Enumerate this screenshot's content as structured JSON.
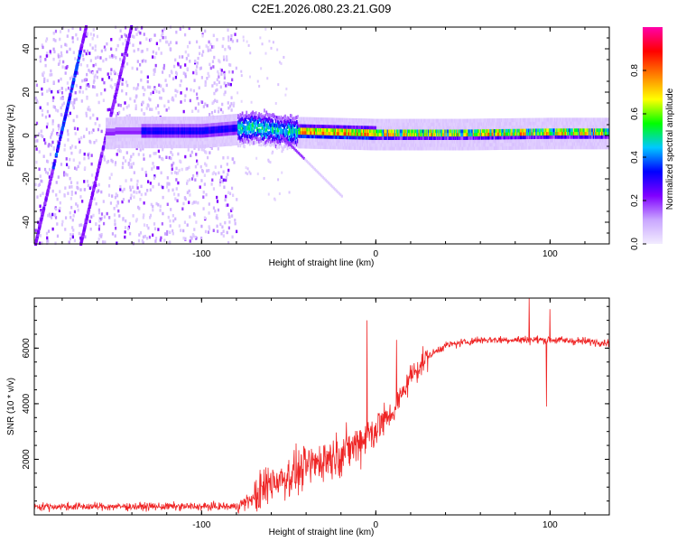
{
  "title": "C2E1.2026.080.23.21.G09",
  "chart_data": [
    {
      "type": "heatmap",
      "title": "C2E1.2026.080.23.21.G09",
      "xlabel": "Height of straight line (km)",
      "ylabel": "Frequency (Hz)",
      "xlim": [
        -196,
        134
      ],
      "ylim": [
        -50,
        50
      ],
      "xticks": [
        -100,
        0,
        100
      ],
      "xtick_labels": [
        "-100",
        "0",
        "100"
      ],
      "yticks": [
        -40,
        -20,
        0,
        20,
        40
      ],
      "ytick_labels": [
        "-40",
        "-20",
        "0",
        "20",
        "40"
      ],
      "grid": false,
      "colorbar": {
        "label": "Normalized spectral amplitude",
        "range": [
          0,
          1
        ],
        "ticks": [
          0,
          0.2,
          0.4,
          0.6,
          0.8
        ],
        "tick_labels": [
          "0.0",
          "0.2",
          "0.4",
          "0.6",
          "0.8"
        ],
        "colormap": [
          "#f2ecff",
          "#c9a6ff",
          "#8000ff",
          "#0000ff",
          "#00c8ff",
          "#00ff00",
          "#ffff00",
          "#ff8000",
          "#ff0000",
          "#ff00aa"
        ]
      },
      "features": {
        "main_tone_freq_hz": [
          {
            "x": -150,
            "y": 2
          },
          {
            "x": -100,
            "y": 2
          },
          {
            "x": -70,
            "y": 4
          },
          {
            "x": -50,
            "y": 2
          },
          {
            "x": 0,
            "y": 1
          },
          {
            "x": 50,
            "y": 1
          },
          {
            "x": 100,
            "y": 1.5
          },
          {
            "x": 134,
            "y": 1.5
          }
        ],
        "steep_lines": [
          {
            "x_start": -196,
            "y_start": -50,
            "x_end": -167,
            "y_end": 50
          },
          {
            "x_start": -170,
            "y_start": -50,
            "x_end": -141,
            "y_end": 50
          }
        ],
        "trailing_line": {
          "x_start": -55,
          "y_start": 0,
          "x_end": -20,
          "y_end": -28
        },
        "noise_region_x": [
          -196,
          -80
        ]
      }
    },
    {
      "type": "line",
      "xlabel": "Height of straight line (km)",
      "ylabel": "SNR (10 * v/v)",
      "xlim": [
        -196,
        134
      ],
      "ylim": [
        0,
        7800
      ],
      "xticks": [
        -100,
        0,
        100
      ],
      "xtick_labels": [
        "-100",
        "0",
        "100"
      ],
      "yticks": [
        2000,
        4000,
        6000
      ],
      "ytick_labels": [
        "2000",
        "4000",
        "6000"
      ],
      "grid": false,
      "series": [
        {
          "name": "SNR",
          "color": "#ef2525",
          "trend": [
            {
              "x": -196,
              "y": 300
            },
            {
              "x": -80,
              "y": 300
            },
            {
              "x": -70,
              "y": 600
            },
            {
              "x": -60,
              "y": 1200
            },
            {
              "x": -50,
              "y": 1400
            },
            {
              "x": -40,
              "y": 1700
            },
            {
              "x": -30,
              "y": 2000
            },
            {
              "x": -20,
              "y": 2200
            },
            {
              "x": -10,
              "y": 2600
            },
            {
              "x": 0,
              "y": 3100
            },
            {
              "x": 10,
              "y": 3700
            },
            {
              "x": 20,
              "y": 5000
            },
            {
              "x": 30,
              "y": 5700
            },
            {
              "x": 40,
              "y": 6100
            },
            {
              "x": 60,
              "y": 6300
            },
            {
              "x": 100,
              "y": 6300
            },
            {
              "x": 134,
              "y": 6200
            }
          ],
          "spikes": [
            {
              "x": -5,
              "y": 7000
            },
            {
              "x": 12,
              "y": 6300
            },
            {
              "x": 88,
              "y": 7800
            },
            {
              "x": 98,
              "y": 3900
            },
            {
              "x": 100,
              "y": 7400
            }
          ]
        }
      ]
    }
  ]
}
